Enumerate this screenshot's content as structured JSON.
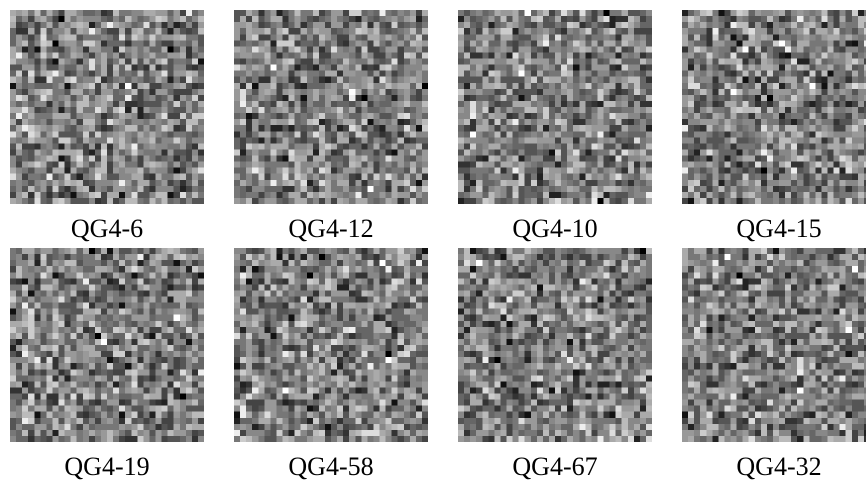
{
  "panels": [
    {
      "label": "QG4-6"
    },
    {
      "label": "QG4-12"
    },
    {
      "label": "QG4-10"
    },
    {
      "label": "QG4-15"
    },
    {
      "label": "QG4-19"
    },
    {
      "label": "QG4-58"
    },
    {
      "label": "QG4-67"
    },
    {
      "label": "QG4-32"
    }
  ]
}
